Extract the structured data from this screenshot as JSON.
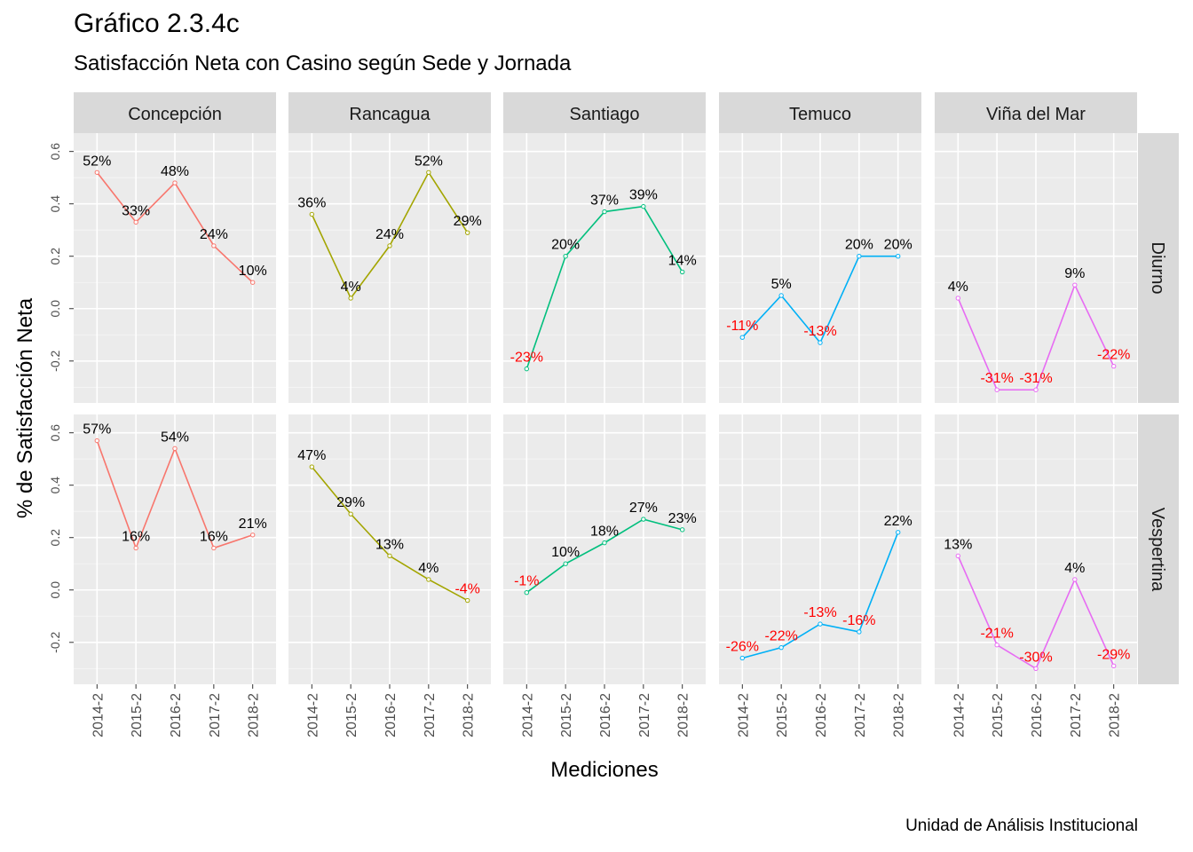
{
  "title": "Gráfico 2.3.4c",
  "subtitle": "Satisfacción Neta con Casino según Sede y Jornada",
  "caption": "Unidad de Análisis Institucional",
  "chart_data": {
    "type": "line",
    "xlabel": "Mediciones",
    "ylabel": "% de Satisfacción Neta",
    "x": [
      "2014-2",
      "2015-2",
      "2016-2",
      "2017-2",
      "2018-2"
    ],
    "yticks": [
      "-0.2",
      "0.0",
      "0.2",
      "0.4",
      "0.6"
    ],
    "ylim": [
      -0.36,
      0.67
    ],
    "facet_columns": [
      "Concepción",
      "Rancagua",
      "Santiago",
      "Temuco",
      "Viña del Mar"
    ],
    "facet_rows": [
      "Diurno",
      "Vespertina"
    ],
    "colors": {
      "Concepción": "#F8766D",
      "Rancagua": "#A3A500",
      "Santiago": "#00BF7D",
      "Temuco": "#00B0F6",
      "Viña del Mar": "#E76BF3",
      "negative_label": "#FF0000",
      "positive_label": "#000000",
      "panel_bg": "#EBEBEB",
      "strip_bg": "#D9D9D9"
    },
    "series": {
      "Diurno": {
        "Concepción": [
          0.52,
          0.33,
          0.48,
          0.24,
          0.1
        ],
        "Rancagua": [
          0.36,
          0.04,
          0.24,
          0.52,
          0.29
        ],
        "Santiago": [
          -0.23,
          0.2,
          0.37,
          0.39,
          0.14
        ],
        "Temuco": [
          -0.11,
          0.05,
          -0.13,
          0.2,
          0.2
        ],
        "Viña del Mar": [
          0.04,
          -0.31,
          -0.31,
          0.09,
          -0.22
        ]
      },
      "Vespertina": {
        "Concepción": [
          0.57,
          0.16,
          0.54,
          0.16,
          0.21
        ],
        "Rancagua": [
          0.47,
          0.29,
          0.13,
          0.04,
          -0.04
        ],
        "Santiago": [
          -0.01,
          0.1,
          0.18,
          0.27,
          0.23
        ],
        "Temuco": [
          -0.26,
          -0.22,
          -0.13,
          -0.16,
          0.22
        ],
        "Viña del Mar": [
          0.13,
          -0.21,
          -0.3,
          0.04,
          -0.29
        ]
      }
    },
    "labels": {
      "Diurno": {
        "Concepción": [
          "52%",
          "33%",
          "48%",
          "24%",
          "10%"
        ],
        "Rancagua": [
          "36%",
          "4%",
          "24%",
          "52%",
          "29%"
        ],
        "Santiago": [
          "-23%",
          "20%",
          "37%",
          "39%",
          "14%"
        ],
        "Temuco": [
          "-11%",
          "5%",
          "-13%",
          "20%",
          "20%"
        ],
        "Viña del Mar": [
          "4%",
          "-31%",
          "-31%",
          "9%",
          "-22%"
        ]
      },
      "Vespertina": {
        "Concepción": [
          "57%",
          "16%",
          "54%",
          "16%",
          "21%"
        ],
        "Rancagua": [
          "47%",
          "29%",
          "13%",
          "4%",
          "-4%"
        ],
        "Santiago": [
          "-1%",
          "10%",
          "18%",
          "27%",
          "23%"
        ],
        "Temuco": [
          "-26%",
          "-22%",
          "-13%",
          "-16%",
          "22%"
        ],
        "Viña del Mar": [
          "13%",
          "-21%",
          "-30%",
          "4%",
          "-29%"
        ]
      }
    }
  }
}
